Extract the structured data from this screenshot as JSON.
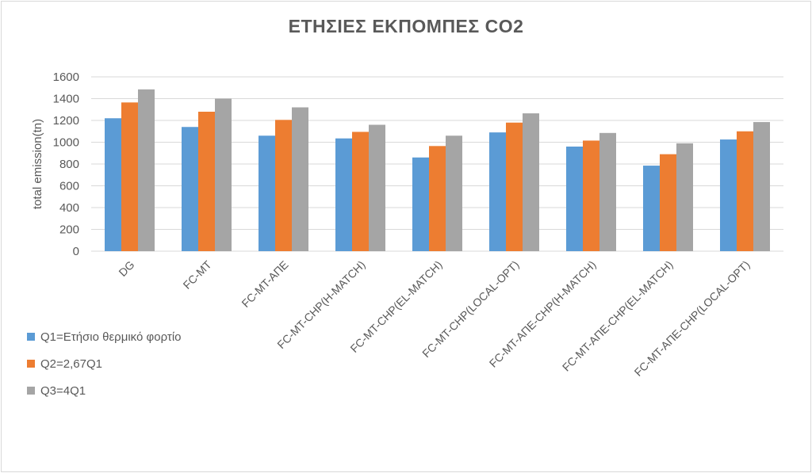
{
  "chart_data": {
    "type": "bar",
    "title": "ΕΤΗΣΙΕΣ ΕΚΠΟΜΠΕΣ CO2",
    "xlabel": "",
    "ylabel": "total emission(tn)",
    "ylim": [
      0,
      1600
    ],
    "yticks": [
      0,
      200,
      400,
      600,
      800,
      1000,
      1200,
      1400,
      1600
    ],
    "grid": true,
    "legend": "bottom-left",
    "categories": [
      "DG",
      "FC-MT",
      "FC-MT-ΑΠΕ",
      "FC-MT-CHP(H-MATCH)",
      "FC-MT-CHP(EL-MATCH)",
      "FC-MT-CHP(LOCAL-OPT)",
      "FC-MT-ΑΠΕ-CHP(H-MATCH)",
      "FC-MT-ΑΠΕ-CHP(EL-MATCH)",
      "FC-MT-ΑΠΕ-CHP(LOCAL-OPT)"
    ],
    "series": [
      {
        "name": "Q1=Ετήσιο θερμικό φορτίο",
        "color": "#5b9bd5",
        "values": [
          1220,
          1140,
          1060,
          1035,
          860,
          1090,
          960,
          785,
          1025
        ]
      },
      {
        "name": "Q2=2,67Q1",
        "color": "#ed7d31",
        "values": [
          1365,
          1280,
          1205,
          1095,
          965,
          1180,
          1015,
          890,
          1100
        ]
      },
      {
        "name": "Q3=4Q1",
        "color": "#a5a5a5",
        "values": [
          1485,
          1400,
          1320,
          1160,
          1060,
          1265,
          1085,
          990,
          1185
        ]
      }
    ]
  }
}
